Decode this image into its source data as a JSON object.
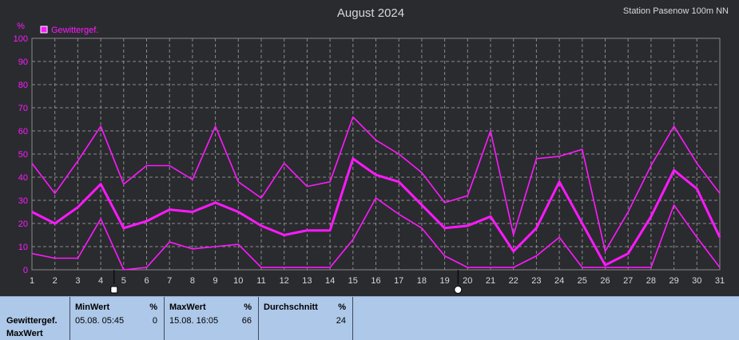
{
  "chart_data": {
    "type": "line",
    "title": "August 2024",
    "station": "Station Pasenow 100m NN",
    "ylabel": "%",
    "legend": "Gewittergef.",
    "x": [
      1,
      2,
      3,
      4,
      5,
      6,
      7,
      8,
      9,
      10,
      11,
      12,
      13,
      14,
      15,
      16,
      17,
      18,
      19,
      20,
      21,
      22,
      23,
      24,
      25,
      26,
      27,
      28,
      29,
      30,
      31
    ],
    "ylim": [
      0,
      100
    ],
    "yticks": [
      0,
      10,
      20,
      30,
      40,
      50,
      60,
      70,
      80,
      90,
      100
    ],
    "series": [
      {
        "name": "MaxWert",
        "values": [
          46,
          33,
          47,
          62,
          37,
          45,
          45,
          39,
          62,
          38,
          31,
          46,
          36,
          38,
          66,
          56,
          50,
          42,
          29,
          32,
          60,
          15,
          48,
          49,
          52,
          8,
          25,
          45,
          62,
          46,
          33
        ]
      },
      {
        "name": "Durchschnitt",
        "values": [
          25,
          20,
          27,
          37,
          18,
          21,
          26,
          25,
          29,
          25,
          19,
          15,
          17,
          17,
          48,
          41,
          38,
          28,
          18,
          19,
          23,
          8,
          18,
          38,
          20,
          2,
          7,
          23,
          43,
          35,
          14
        ]
      },
      {
        "name": "MinWert",
        "values": [
          7,
          5,
          5,
          22,
          0,
          1,
          12,
          9,
          10,
          11,
          1,
          1,
          1,
          1,
          13,
          31,
          24,
          18,
          6,
          1,
          1,
          1,
          6,
          14,
          1,
          1,
          1,
          1,
          28,
          14,
          1
        ]
      }
    ],
    "markers": [
      {
        "x": 5,
        "shape": "square"
      },
      {
        "x": 20,
        "shape": "circle"
      }
    ],
    "colors": {
      "line": "#ff19ff",
      "background": "#2a2b2f",
      "grid": "#8a8a8a",
      "axis_text": "#ff19ff",
      "title_text": "#d8d8d8"
    },
    "grid": true,
    "legend_position": "top-left"
  },
  "stats": {
    "row_label_1": "Gewittergef.",
    "row_label_2": "MaxWert",
    "min": {
      "header": "MinWert",
      "unit": "%",
      "date": "05.08.  05:45",
      "value": "0"
    },
    "max": {
      "header": "MaxWert",
      "unit": "%",
      "date": "15.08.  16:05",
      "value": "66"
    },
    "avg": {
      "header": "Durchschnitt",
      "unit": "%",
      "value": "24"
    }
  }
}
